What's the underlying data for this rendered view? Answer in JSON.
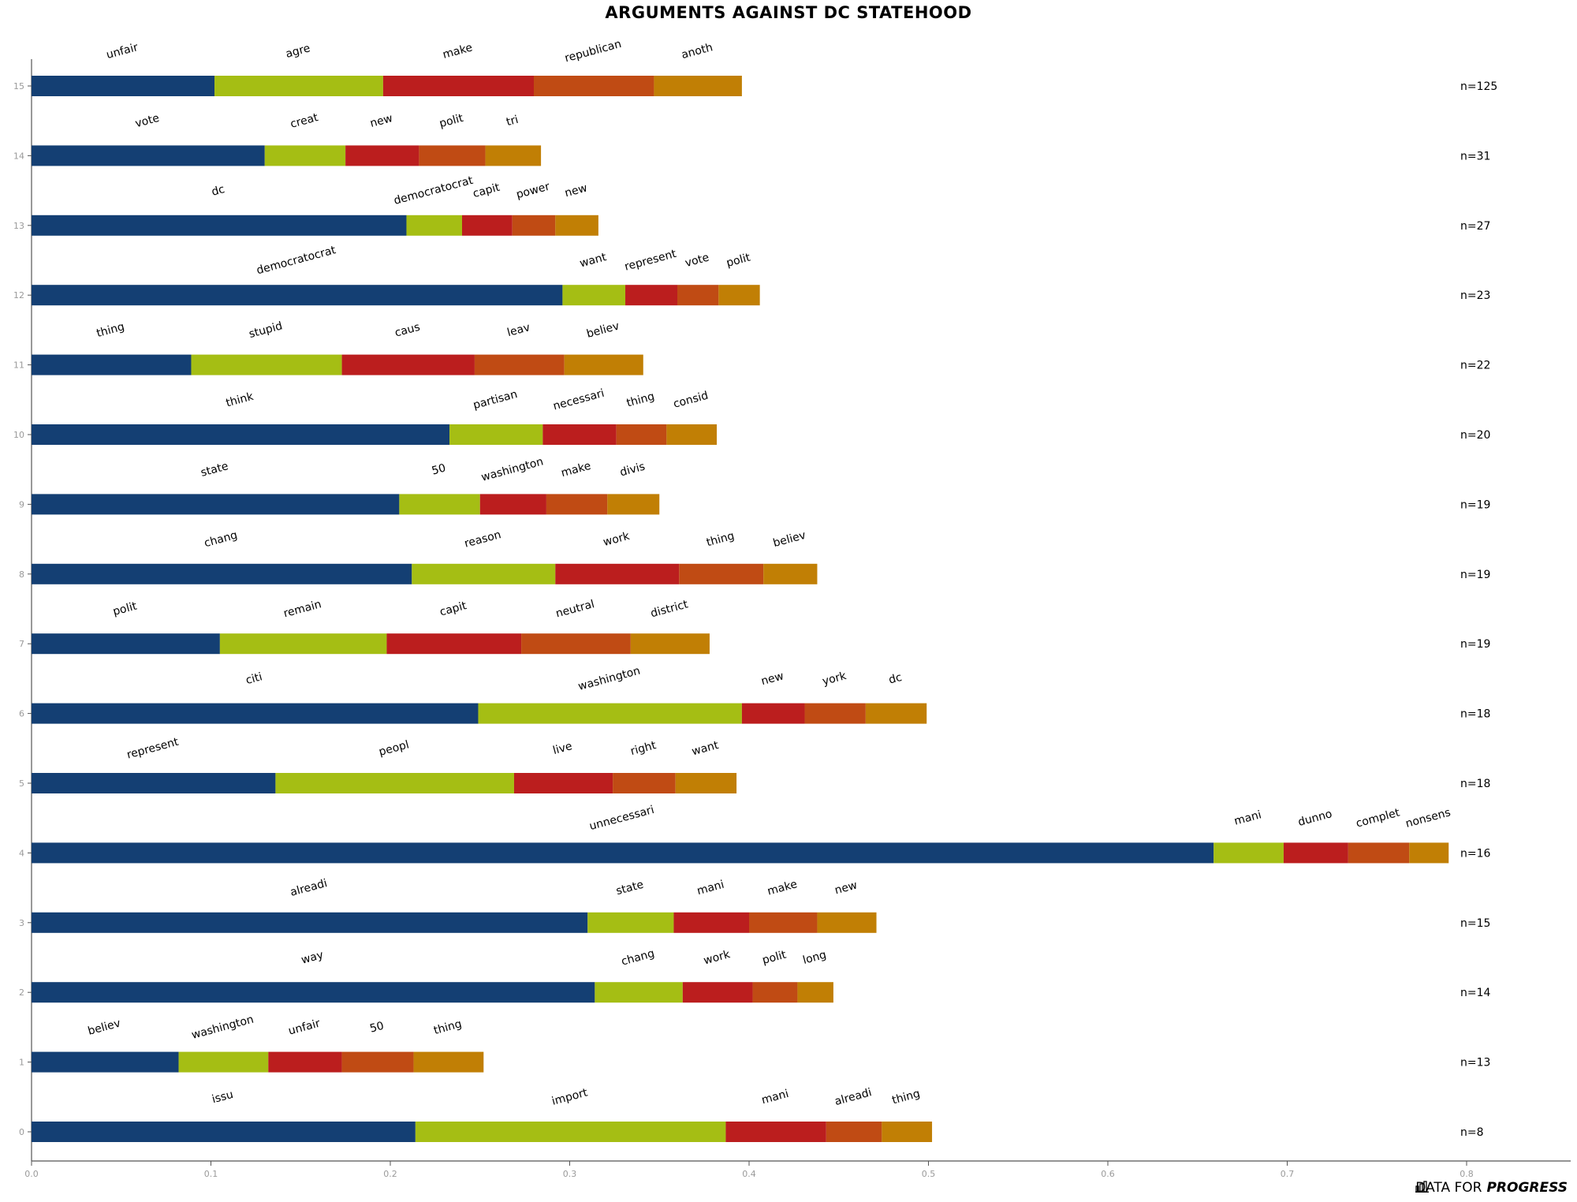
{
  "chart_data": {
    "type": "bar",
    "title": "ARGUMENTS AGAINST DC STATEHOOD",
    "orientation": "horizontal-stacked",
    "xlim": [
      0,
      0.86
    ],
    "xticks": [
      "0.0",
      "0.1",
      "0.2",
      "0.3",
      "0.4",
      "0.5",
      "0.6",
      "0.7",
      "0.8"
    ],
    "grid": false,
    "colors": [
      "#143f73",
      "#a5be14",
      "#bb1e1e",
      "#c04b14",
      "#c17f05"
    ],
    "categories": [
      "0",
      "1",
      "2",
      "3",
      "4",
      "5",
      "6",
      "7",
      "8",
      "9",
      "10",
      "11",
      "12",
      "13",
      "14",
      "15"
    ],
    "rows": [
      {
        "y": "0",
        "n": "n=8",
        "values": [
          0.214,
          0.173,
          0.056,
          0.031,
          0.028
        ],
        "words": [
          "issu",
          "import",
          "mani",
          "alreadi",
          "thing"
        ]
      },
      {
        "y": "1",
        "n": "n=13",
        "values": [
          0.082,
          0.05,
          0.041,
          0.04,
          0.039
        ],
        "words": [
          "believ",
          "washington",
          "unfair",
          "50",
          "thing"
        ]
      },
      {
        "y": "2",
        "n": "n=14",
        "values": [
          0.314,
          0.049,
          0.039,
          0.025,
          0.02
        ],
        "words": [
          "way",
          "chang",
          "work",
          "polit",
          "long"
        ]
      },
      {
        "y": "3",
        "n": "n=15",
        "values": [
          0.31,
          0.048,
          0.042,
          0.038,
          0.033
        ],
        "words": [
          "alreadi",
          "state",
          "mani",
          "make",
          "new"
        ]
      },
      {
        "y": "4",
        "n": "n=16",
        "values": [
          0.659,
          0.039,
          0.036,
          0.034,
          0.022
        ],
        "words": [
          "unnecessari",
          "mani",
          "dunno",
          "complet",
          "nonsens"
        ]
      },
      {
        "y": "5",
        "n": "n=18",
        "values": [
          0.136,
          0.133,
          0.055,
          0.035,
          0.034
        ],
        "words": [
          "represent",
          "peopl",
          "live",
          "right",
          "want"
        ]
      },
      {
        "y": "6",
        "n": "n=18",
        "values": [
          0.249,
          0.147,
          0.035,
          0.034,
          0.034
        ],
        "words": [
          "citi",
          "washington",
          "new",
          "york",
          "dc"
        ]
      },
      {
        "y": "7",
        "n": "n=19",
        "values": [
          0.105,
          0.093,
          0.075,
          0.061,
          0.044
        ],
        "words": [
          "polit",
          "remain",
          "capit",
          "neutral",
          "district"
        ]
      },
      {
        "y": "8",
        "n": "n=19",
        "values": [
          0.212,
          0.08,
          0.069,
          0.047,
          0.03
        ],
        "words": [
          "chang",
          "reason",
          "work",
          "thing",
          "believ"
        ]
      },
      {
        "y": "9",
        "n": "n=19",
        "values": [
          0.205,
          0.045,
          0.037,
          0.034,
          0.029
        ],
        "words": [
          "state",
          "50",
          "washington",
          "make",
          "divis"
        ]
      },
      {
        "y": "10",
        "n": "n=20",
        "values": [
          0.233,
          0.052,
          0.041,
          0.028,
          0.028
        ],
        "words": [
          "think",
          "partisan",
          "necessari",
          "thing",
          "consid"
        ]
      },
      {
        "y": "11",
        "n": "n=22",
        "values": [
          0.089,
          0.084,
          0.074,
          0.05,
          0.044
        ],
        "words": [
          "thing",
          "stupid",
          "caus",
          "leav",
          "believ"
        ]
      },
      {
        "y": "12",
        "n": "n=23",
        "values": [
          0.296,
          0.035,
          0.029,
          0.023,
          0.023
        ],
        "words": [
          "democratocrat",
          "want",
          "represent",
          "vote",
          "polit"
        ]
      },
      {
        "y": "13",
        "n": "n=27",
        "values": [
          0.209,
          0.031,
          0.028,
          0.024,
          0.024
        ],
        "words": [
          "dc",
          "democratocrat",
          "capit",
          "power",
          "new"
        ]
      },
      {
        "y": "14",
        "n": "n=31",
        "values": [
          0.13,
          0.045,
          0.041,
          0.037,
          0.031
        ],
        "words": [
          "vote",
          "creat",
          "new",
          "polit",
          "tri"
        ]
      },
      {
        "y": "15",
        "n": "n=125",
        "values": [
          0.102,
          0.094,
          0.084,
          0.067,
          0.049
        ],
        "words": [
          "unfair",
          "agre",
          "make",
          "republican",
          "anoth"
        ]
      }
    ]
  },
  "branding": {
    "prefix": "DATA FOR",
    "name": "PROGRESS"
  }
}
